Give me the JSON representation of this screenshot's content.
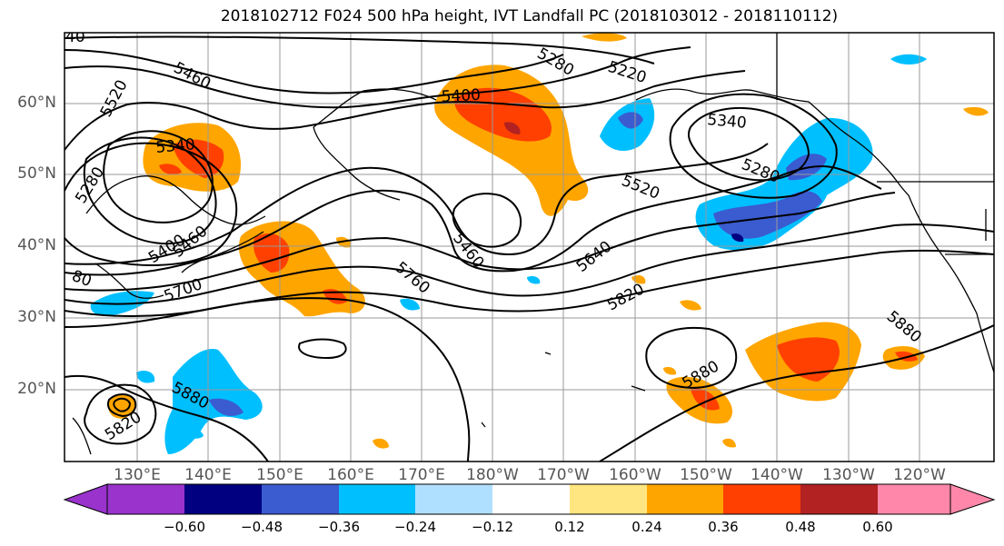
{
  "title": "2018102712 F024 500 hPa height, IVT Landfall PC (2018103012 - 2018110112)",
  "lat_labels": [
    "60°N",
    "50°N",
    "40°N",
    "30°N",
    "20°N"
  ],
  "lon_labels": [
    "130°E",
    "140°E",
    "150°E",
    "160°E",
    "170°E",
    "180°W",
    "170°W",
    "160°W",
    "150°W",
    "140°W",
    "130°W",
    "120°W"
  ],
  "colorbar": {
    "ticks": [
      "−0.60",
      "−0.48",
      "−0.36",
      "−0.24",
      "−0.12",
      "0.12",
      "0.24",
      "0.36",
      "0.48",
      "0.60"
    ],
    "colors": [
      "#9933cc",
      "#000080",
      "#3b5bd0",
      "#00bfff",
      "#b0e0ff",
      "#ffffff",
      "#ffe680",
      "#ffa500",
      "#ff4000",
      "#b22222",
      "#ff88aa"
    ]
  },
  "contours": {
    "labels": [
      "5460",
      "5520",
      "5340",
      "5280",
      "5400",
      "5460",
      "5700",
      "5880",
      "5820",
      "5400",
      "5280",
      "5220",
      "5460",
      "5760",
      "5640",
      "5520",
      "5340",
      "5280",
      "5820",
      "5880",
      "5880",
      "40",
      "80"
    ]
  },
  "colors": {
    "contour": "#000000",
    "grid": "#999999",
    "coast": "#000000"
  }
}
